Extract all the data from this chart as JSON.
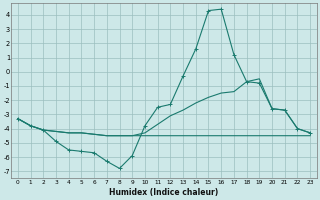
{
  "xlabel": "Humidex (Indice chaleur)",
  "xlim": [
    -0.5,
    23.5
  ],
  "ylim": [
    -7.5,
    4.8
  ],
  "yticks": [
    -7,
    -6,
    -5,
    -4,
    -3,
    -2,
    -1,
    0,
    1,
    2,
    3,
    4
  ],
  "xticks": [
    0,
    1,
    2,
    3,
    4,
    5,
    6,
    7,
    8,
    9,
    10,
    11,
    12,
    13,
    14,
    15,
    16,
    17,
    18,
    19,
    20,
    21,
    22,
    23
  ],
  "background_color": "#cde8e8",
  "grid_color": "#9bbfbf",
  "line_color": "#1a7a6e",
  "line1_y": [
    -3.3,
    -3.8,
    -4.1,
    -4.2,
    -4.3,
    -4.3,
    -4.4,
    -4.5,
    -4.5,
    -4.5,
    -4.5,
    -4.5,
    -4.5,
    -4.5,
    -4.5,
    -4.5,
    -4.5,
    -4.5,
    -4.5,
    -4.5,
    -4.5,
    -4.5,
    -4.5,
    -4.5
  ],
  "line2_y": [
    -3.3,
    -3.8,
    -4.1,
    -4.9,
    -5.5,
    -5.6,
    -5.7,
    -6.3,
    -6.8,
    -5.9,
    -3.8,
    -2.5,
    -2.3,
    -0.3,
    1.6,
    4.3,
    4.4,
    1.2,
    -0.7,
    -0.8,
    -2.6,
    -2.7,
    -4.0,
    -4.3
  ],
  "line3_y": [
    -3.3,
    -3.8,
    -4.1,
    -4.2,
    -4.3,
    -4.3,
    -4.4,
    -4.5,
    -4.5,
    -4.5,
    -4.3,
    -3.7,
    -3.1,
    -2.7,
    -2.2,
    -1.8,
    -1.5,
    -1.4,
    -0.7,
    -0.5,
    -2.6,
    -2.7,
    -4.0,
    -4.3
  ]
}
